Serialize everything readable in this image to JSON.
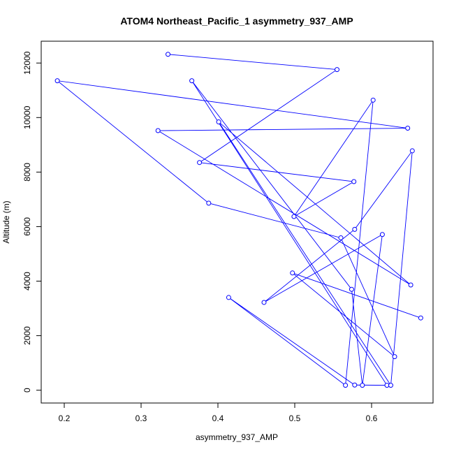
{
  "chart_data": {
    "type": "line",
    "title": "ATOM4 Northeast_Pacific_1 asymmetry_937_AMP",
    "xlabel": "asymmetry_937_AMP",
    "ylabel": "Altitude (m)",
    "xlim": [
      0.17,
      0.68
    ],
    "ylim": [
      -470,
      12800
    ],
    "x_ticks": [
      0.2,
      0.3,
      0.4,
      0.5,
      0.6
    ],
    "y_ticks": [
      0,
      2000,
      4000,
      6000,
      8000,
      10000,
      12000
    ],
    "x_tick_labels": [
      "0.2",
      "0.3",
      "0.4",
      "0.5",
      "0.6"
    ],
    "y_tick_labels": [
      "0",
      "2000",
      "4000",
      "6000",
      "8000",
      "10000",
      "12000"
    ],
    "grid": false,
    "legend": "none",
    "series_color": "#0000ff",
    "markers": "open-circle",
    "series": [
      {
        "x": [
          0.335,
          0.555,
          0.376,
          0.577,
          0.499,
          0.602,
          0.566,
          0.414,
          0.578,
          0.62,
          0.366,
          0.574,
          0.588,
          0.614,
          0.46,
          0.578,
          0.653,
          0.625,
          0.401,
          0.651,
          0.322,
          0.647,
          0.191,
          0.388,
          0.56,
          0.63,
          0.497,
          0.664
        ],
        "y": [
          12320,
          11760,
          8350,
          7650,
          6370,
          10640,
          180,
          3400,
          190,
          180,
          11350,
          3700,
          180,
          5710,
          3220,
          5900,
          8780,
          180,
          9840,
          3860,
          9520,
          9610,
          11350,
          6860,
          5590,
          1230,
          4300,
          2650
        ]
      }
    ]
  }
}
